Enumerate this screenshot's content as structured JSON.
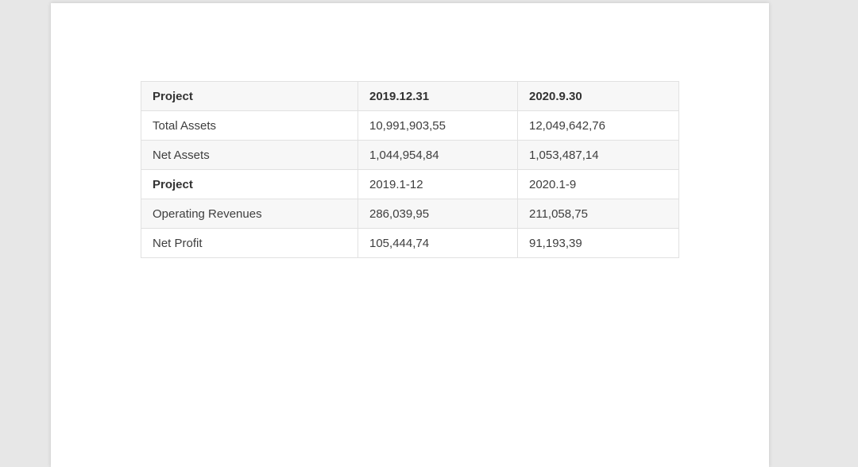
{
  "colors": {
    "canvas_background": "#e7e7e7",
    "page_background": "#ffffff",
    "table_stripe_background": "#f7f7f7",
    "table_border": "#e1e1e1",
    "body_text": "#3e3e3e",
    "bold_text": "#333333"
  },
  "document": {
    "table": {
      "header_row": [
        "Project",
        "2019.12.31",
        "2020.9.30"
      ],
      "rows": [
        {
          "cells": [
            "Total Assets",
            "10,991,903,55",
            "12,049,642,76"
          ]
        },
        {
          "cells": [
            "Net Assets",
            "1,044,954,84",
            "1,053,487,14"
          ]
        },
        {
          "cells": [
            "Project",
            "2019.1-12",
            "2020.1-9"
          ]
        },
        {
          "cells": [
            "Operating Revenues",
            "286,039,95",
            "211,058,75"
          ]
        },
        {
          "cells": [
            "Net Profit",
            "105,444,74",
            "91,193,39"
          ]
        }
      ]
    }
  }
}
